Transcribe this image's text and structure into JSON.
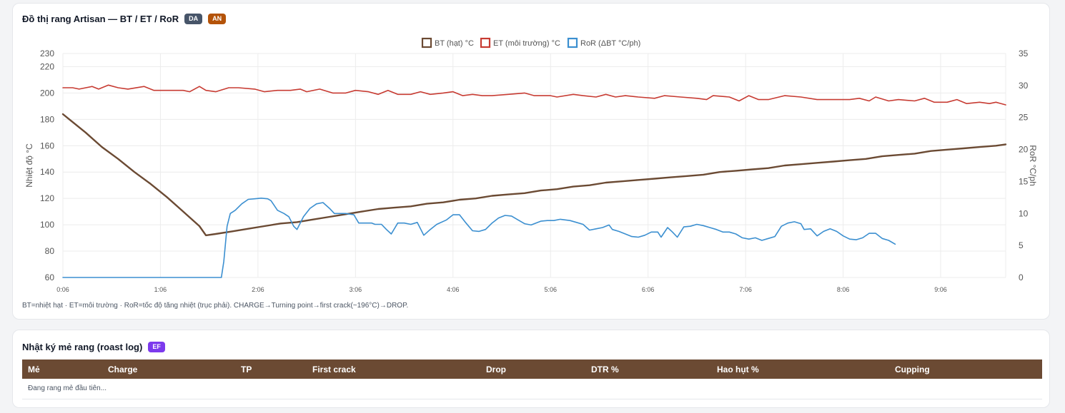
{
  "chart_card": {
    "title": "Đồ thị rang Artisan — BT / ET / RoR",
    "badges": [
      {
        "label": "DA",
        "color": "#475569"
      },
      {
        "label": "AN",
        "color": "#b45309"
      }
    ],
    "note": "BT=nhiệt hạt · ET=môi trường · RoR=tốc độ tăng nhiệt (trục phải). CHARGE→Turning point→first crack(~196°C)→DROP."
  },
  "log_card": {
    "title": "Nhật ký mẻ rang (roast log)",
    "badge": {
      "label": "EF",
      "color": "#7c3aed"
    },
    "columns": [
      "Mẻ",
      "Charge",
      "TP",
      "First crack",
      "Drop",
      "DTR %",
      "Hao hụt %",
      "Cupping"
    ],
    "empty_text": "Đang rang mẻ đầu tiên..."
  },
  "chart_data": {
    "type": "line",
    "x_unit": "seconds",
    "xlim": [
      6,
      586
    ],
    "x_ticks": [
      {
        "t": 6,
        "label": "0:06"
      },
      {
        "t": 66,
        "label": "1:06"
      },
      {
        "t": 126,
        "label": "2:06"
      },
      {
        "t": 186,
        "label": "3:06"
      },
      {
        "t": 246,
        "label": "4:06"
      },
      {
        "t": 306,
        "label": "5:06"
      },
      {
        "t": 366,
        "label": "6:06"
      },
      {
        "t": 426,
        "label": "7:06"
      },
      {
        "t": 486,
        "label": "8:06"
      },
      {
        "t": 546,
        "label": "9:06"
      }
    ],
    "ylabel": "Nhiệt độ °C",
    "ylim": [
      60,
      230
    ],
    "y_ticks": [
      60,
      80,
      100,
      120,
      140,
      160,
      180,
      200,
      220,
      230
    ],
    "y2label": "RoR °C/ph",
    "y2lim": [
      0,
      35
    ],
    "y2_ticks": [
      0,
      5,
      10,
      15,
      20,
      25,
      30,
      35
    ],
    "grid": true,
    "legend_position": "top-center",
    "series": [
      {
        "name": "BT (hạt) °C",
        "axis": "left",
        "color": "#6b4a33",
        "width": 2.4,
        "points": [
          [
            6,
            184
          ],
          [
            10,
            180
          ],
          [
            20,
            170
          ],
          [
            30,
            159
          ],
          [
            40,
            150
          ],
          [
            50,
            140
          ],
          [
            60,
            131
          ],
          [
            70,
            121
          ],
          [
            80,
            110
          ],
          [
            90,
            99
          ],
          [
            94,
            92
          ],
          [
            100,
            93
          ],
          [
            110,
            95
          ],
          [
            120,
            97
          ],
          [
            130,
            99
          ],
          [
            140,
            101
          ],
          [
            150,
            102
          ],
          [
            160,
            104
          ],
          [
            170,
            106
          ],
          [
            180,
            108
          ],
          [
            190,
            110
          ],
          [
            200,
            112
          ],
          [
            210,
            113
          ],
          [
            220,
            114
          ],
          [
            230,
            116
          ],
          [
            240,
            117
          ],
          [
            250,
            119
          ],
          [
            260,
            120
          ],
          [
            270,
            122
          ],
          [
            280,
            123
          ],
          [
            290,
            124
          ],
          [
            300,
            126
          ],
          [
            310,
            127
          ],
          [
            320,
            129
          ],
          [
            330,
            130
          ],
          [
            340,
            132
          ],
          [
            350,
            133
          ],
          [
            360,
            134
          ],
          [
            370,
            135
          ],
          [
            380,
            136
          ],
          [
            390,
            137
          ],
          [
            400,
            138
          ],
          [
            410,
            140
          ],
          [
            420,
            141
          ],
          [
            430,
            142
          ],
          [
            440,
            143
          ],
          [
            450,
            145
          ],
          [
            460,
            146
          ],
          [
            470,
            147
          ],
          [
            480,
            148
          ],
          [
            490,
            149
          ],
          [
            500,
            150
          ],
          [
            510,
            152
          ],
          [
            520,
            153
          ],
          [
            530,
            154
          ],
          [
            540,
            156
          ],
          [
            550,
            157
          ],
          [
            560,
            158
          ],
          [
            570,
            159
          ],
          [
            580,
            160
          ],
          [
            586,
            161
          ]
        ]
      },
      {
        "name": "ET (môi trường) °C",
        "axis": "left",
        "color": "#c73b32",
        "width": 1.6,
        "points": [
          [
            6,
            204
          ],
          [
            12,
            204
          ],
          [
            16,
            203
          ],
          [
            24,
            205
          ],
          [
            28,
            203
          ],
          [
            34,
            206
          ],
          [
            40,
            204
          ],
          [
            46,
            203
          ],
          [
            56,
            205
          ],
          [
            62,
            202
          ],
          [
            70,
            202
          ],
          [
            80,
            202
          ],
          [
            84,
            201
          ],
          [
            90,
            205
          ],
          [
            94,
            202
          ],
          [
            100,
            201
          ],
          [
            108,
            204
          ],
          [
            114,
            204
          ],
          [
            124,
            203
          ],
          [
            130,
            201
          ],
          [
            138,
            202
          ],
          [
            146,
            202
          ],
          [
            152,
            203
          ],
          [
            156,
            201
          ],
          [
            164,
            203
          ],
          [
            172,
            200
          ],
          [
            180,
            200
          ],
          [
            186,
            202
          ],
          [
            194,
            201
          ],
          [
            200,
            199
          ],
          [
            206,
            202
          ],
          [
            212,
            199
          ],
          [
            220,
            199
          ],
          [
            226,
            201
          ],
          [
            232,
            199
          ],
          [
            240,
            200
          ],
          [
            246,
            201
          ],
          [
            252,
            198
          ],
          [
            258,
            199
          ],
          [
            264,
            198
          ],
          [
            270,
            198
          ],
          [
            280,
            199
          ],
          [
            290,
            200
          ],
          [
            296,
            198
          ],
          [
            306,
            198
          ],
          [
            310,
            197
          ],
          [
            320,
            199
          ],
          [
            326,
            198
          ],
          [
            334,
            197
          ],
          [
            340,
            199
          ],
          [
            346,
            197
          ],
          [
            352,
            198
          ],
          [
            360,
            197
          ],
          [
            370,
            196
          ],
          [
            376,
            198
          ],
          [
            386,
            197
          ],
          [
            396,
            196
          ],
          [
            402,
            195
          ],
          [
            406,
            198
          ],
          [
            416,
            197
          ],
          [
            422,
            194
          ],
          [
            428,
            198
          ],
          [
            434,
            195
          ],
          [
            440,
            195
          ],
          [
            450,
            198
          ],
          [
            460,
            197
          ],
          [
            470,
            195
          ],
          [
            480,
            195
          ],
          [
            490,
            195
          ],
          [
            496,
            196
          ],
          [
            502,
            194
          ],
          [
            506,
            197
          ],
          [
            514,
            194
          ],
          [
            520,
            195
          ],
          [
            530,
            194
          ],
          [
            536,
            196
          ],
          [
            542,
            193
          ],
          [
            550,
            193
          ],
          [
            556,
            195
          ],
          [
            562,
            192
          ],
          [
            570,
            193
          ],
          [
            576,
            192
          ],
          [
            580,
            193
          ],
          [
            586,
            191
          ]
        ]
      },
      {
        "name": "RoR (ΔBT °C/ph)",
        "axis": "right",
        "color": "#3b8fd0",
        "width": 1.6,
        "points": [
          [
            6,
            0
          ],
          [
            60,
            0
          ],
          [
            102,
            0
          ],
          [
            103.5,
            0
          ],
          [
            105,
            2.5
          ],
          [
            107,
            8
          ],
          [
            109,
            10
          ],
          [
            112,
            10.5
          ],
          [
            116,
            11.5
          ],
          [
            120,
            12.2
          ],
          [
            124,
            12.3
          ],
          [
            128,
            12.4
          ],
          [
            132,
            12.3
          ],
          [
            134,
            12
          ],
          [
            138,
            10.5
          ],
          [
            142,
            10
          ],
          [
            145,
            9.5
          ],
          [
            148,
            8
          ],
          [
            150,
            7.5
          ],
          [
            154,
            9.5
          ],
          [
            158,
            10.8
          ],
          [
            162,
            11.5
          ],
          [
            166,
            11.7
          ],
          [
            170,
            10.8
          ],
          [
            173,
            10
          ],
          [
            180,
            10
          ],
          [
            185,
            9.8
          ],
          [
            188,
            8.5
          ],
          [
            192,
            8.5
          ],
          [
            196,
            8.5
          ],
          [
            198,
            8.3
          ],
          [
            202,
            8.3
          ],
          [
            205,
            7.5
          ],
          [
            208,
            6.8
          ],
          [
            212,
            8.5
          ],
          [
            216,
            8.5
          ],
          [
            220,
            8.3
          ],
          [
            224,
            8.6
          ],
          [
            228,
            6.6
          ],
          [
            232,
            7.5
          ],
          [
            236,
            8.3
          ],
          [
            242,
            9
          ],
          [
            246,
            9.8
          ],
          [
            250,
            9.8
          ],
          [
            254,
            8.5
          ],
          [
            258,
            7.3
          ],
          [
            262,
            7.2
          ],
          [
            266,
            7.5
          ],
          [
            270,
            8.5
          ],
          [
            274,
            9.3
          ],
          [
            278,
            9.7
          ],
          [
            282,
            9.6
          ],
          [
            286,
            9
          ],
          [
            290,
            8.4
          ],
          [
            294,
            8.2
          ],
          [
            300,
            8.8
          ],
          [
            304,
            8.9
          ],
          [
            308,
            8.9
          ],
          [
            312,
            9.1
          ],
          [
            318,
            8.9
          ],
          [
            322,
            8.6
          ],
          [
            326,
            8.3
          ],
          [
            330,
            7.4
          ],
          [
            334,
            7.6
          ],
          [
            338,
            7.8
          ],
          [
            342,
            8.2
          ],
          [
            344,
            7.5
          ],
          [
            348,
            7.2
          ],
          [
            352,
            6.8
          ],
          [
            356,
            6.4
          ],
          [
            360,
            6.3
          ],
          [
            364,
            6.6
          ],
          [
            368,
            7.1
          ],
          [
            372,
            7.1
          ],
          [
            374,
            6.3
          ],
          [
            378,
            7.8
          ],
          [
            381,
            7.1
          ],
          [
            384,
            6.3
          ],
          [
            388,
            7.9
          ],
          [
            392,
            8
          ],
          [
            396,
            8.3
          ],
          [
            400,
            8.1
          ],
          [
            404,
            7.8
          ],
          [
            408,
            7.5
          ],
          [
            412,
            7.1
          ],
          [
            416,
            7.1
          ],
          [
            420,
            6.8
          ],
          [
            424,
            6.2
          ],
          [
            428,
            6
          ],
          [
            432,
            6.2
          ],
          [
            436,
            5.8
          ],
          [
            440,
            6.1
          ],
          [
            444,
            6.4
          ],
          [
            448,
            8
          ],
          [
            452,
            8.5
          ],
          [
            456,
            8.7
          ],
          [
            460,
            8.4
          ],
          [
            462,
            7.5
          ],
          [
            466,
            7.6
          ],
          [
            470,
            6.5
          ],
          [
            474,
            7.2
          ],
          [
            478,
            7.6
          ],
          [
            482,
            7.2
          ],
          [
            486,
            6.5
          ],
          [
            490,
            6
          ],
          [
            494,
            5.9
          ],
          [
            498,
            6.2
          ],
          [
            502,
            6.9
          ],
          [
            506,
            6.9
          ],
          [
            510,
            6.1
          ],
          [
            514,
            5.8
          ],
          [
            518,
            5.2
          ]
        ]
      }
    ]
  }
}
